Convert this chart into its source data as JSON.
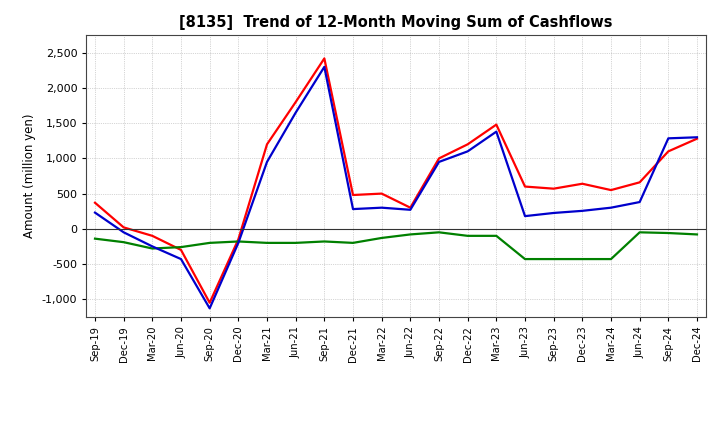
{
  "title": "[8135]  Trend of 12-Month Moving Sum of Cashflows",
  "ylabel": "Amount (million yen)",
  "ylim": [
    -1250,
    2750
  ],
  "yticks": [
    -1000,
    -500,
    0,
    500,
    1000,
    1500,
    2000,
    2500
  ],
  "background_color": "#ffffff",
  "plot_bg_color": "#ffffff",
  "grid_color": "#999999",
  "labels": [
    "Sep-19",
    "Dec-19",
    "Mar-20",
    "Jun-20",
    "Sep-20",
    "Dec-20",
    "Mar-21",
    "Jun-21",
    "Sep-21",
    "Dec-21",
    "Mar-22",
    "Jun-22",
    "Sep-22",
    "Dec-22",
    "Mar-23",
    "Jun-23",
    "Sep-23",
    "Dec-23",
    "Mar-24",
    "Jun-24",
    "Sep-24",
    "Dec-24"
  ],
  "operating": [
    370,
    20,
    -100,
    -300,
    -1050,
    -150,
    1200,
    1800,
    2420,
    480,
    500,
    300,
    1000,
    1200,
    1480,
    600,
    570,
    640,
    550,
    660,
    1100,
    1280
  ],
  "investing": [
    -140,
    -190,
    -280,
    -260,
    -200,
    -180,
    -200,
    -200,
    -180,
    -200,
    -130,
    -80,
    -50,
    -100,
    -100,
    -430,
    -430,
    -430,
    -430,
    -50,
    -60,
    -80
  ],
  "free": [
    230,
    -50,
    -250,
    -430,
    -1130,
    -200,
    950,
    1650,
    2300,
    280,
    300,
    270,
    950,
    1100,
    1380,
    180,
    225,
    255,
    300,
    380,
    1285,
    1300
  ],
  "operating_color": "#ff0000",
  "investing_color": "#008000",
  "free_color": "#0000cc",
  "line_width": 1.6
}
